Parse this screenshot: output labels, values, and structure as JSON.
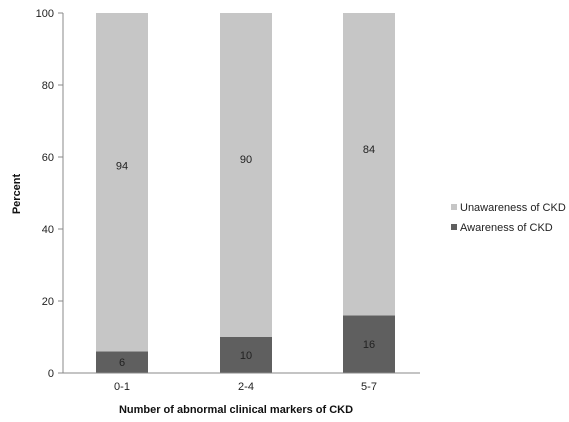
{
  "chart_data": {
    "type": "bar",
    "stacked": true,
    "categories": [
      "0-1",
      "2-4",
      "5-7"
    ],
    "series": [
      {
        "name": "Awareness of CKD",
        "values": [
          6,
          10,
          16
        ],
        "color": "#5f5f5f"
      },
      {
        "name": "Unawareness of CKD",
        "values": [
          94,
          90,
          84
        ],
        "color": "#c6c6c6"
      }
    ],
    "xlabel": "Number of abnormal clinical markers of CKD",
    "ylabel": "Percent",
    "ylim": [
      0,
      100
    ],
    "yticks": [
      "0",
      "20",
      "40",
      "60",
      "80",
      "100"
    ],
    "legend_position": "right",
    "grid": false
  }
}
